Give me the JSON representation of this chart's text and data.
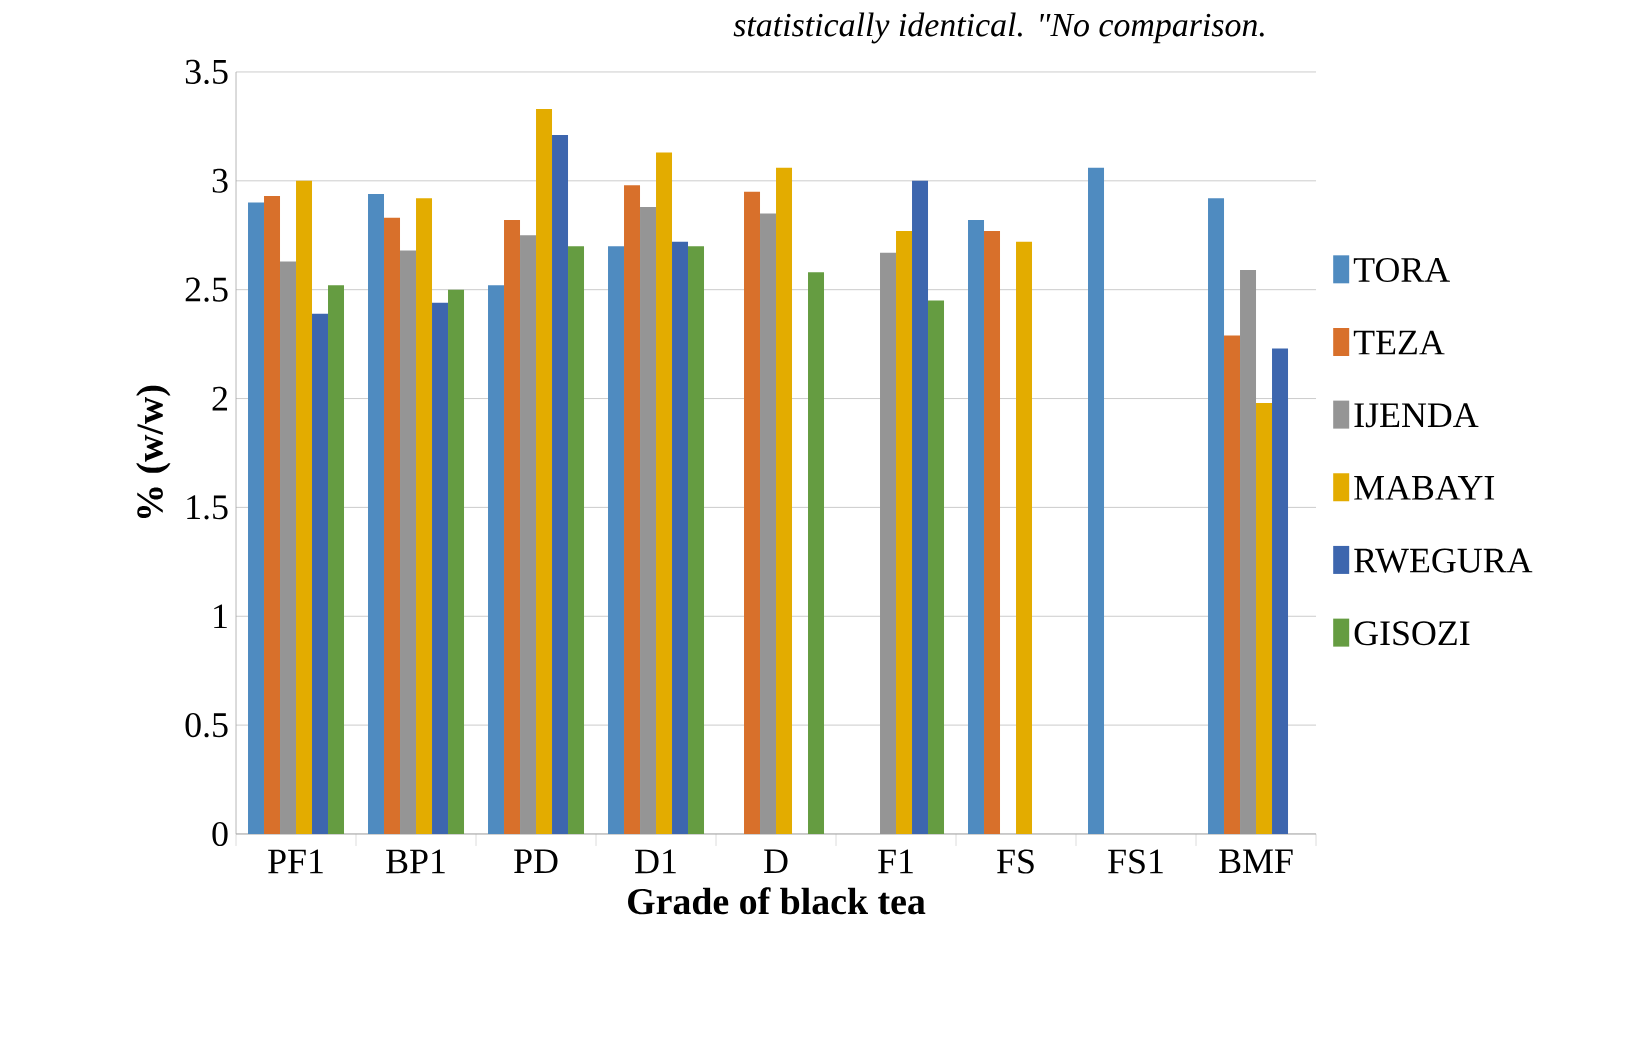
{
  "chart_data": {
    "type": "bar",
    "annotations": [
      "statistically identical. \"No comparison."
    ],
    "xlabel": "Grade of black tea",
    "ylabel": "% (w/w)",
    "categories": [
      "PF1",
      "BP1",
      "PD",
      "D1",
      "D",
      "F1",
      "FS",
      "FS1",
      "BMF"
    ],
    "series": [
      {
        "name": "TORA",
        "color": "#4f8bc0",
        "values": [
          2.9,
          2.94,
          2.52,
          2.7,
          null,
          null,
          2.82,
          3.06,
          2.92
        ]
      },
      {
        "name": "TEZA",
        "color": "#d8702b",
        "values": [
          2.93,
          2.83,
          2.82,
          2.98,
          2.95,
          null,
          2.77,
          null,
          2.29
        ]
      },
      {
        "name": "IJENDA",
        "color": "#959595",
        "values": [
          2.63,
          2.68,
          2.75,
          2.88,
          2.85,
          2.67,
          null,
          null,
          2.59
        ]
      },
      {
        "name": "MABAYI",
        "color": "#e3ac00",
        "values": [
          3.0,
          2.92,
          3.33,
          3.13,
          3.06,
          2.77,
          2.72,
          null,
          1.98
        ]
      },
      {
        "name": "RWEGURA",
        "color": "#3d66ae",
        "values": [
          2.39,
          2.44,
          3.21,
          2.72,
          null,
          3.0,
          null,
          null,
          2.23
        ]
      },
      {
        "name": "GISOZI",
        "color": "#659c41",
        "values": [
          2.52,
          2.5,
          2.7,
          2.7,
          2.58,
          2.45,
          null,
          null,
          null
        ]
      }
    ],
    "ylim": [
      0,
      3.5
    ],
    "yticks": [
      0,
      0.5,
      1,
      1.5,
      2,
      2.5,
      3,
      3.5
    ],
    "grid": "y",
    "legend": "right"
  }
}
